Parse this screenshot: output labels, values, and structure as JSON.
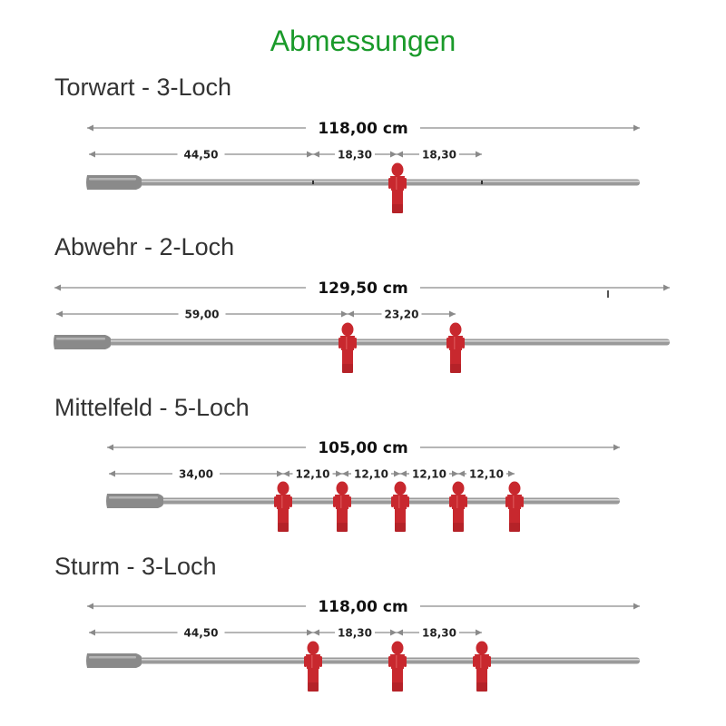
{
  "title": "Abmessungen",
  "colors": {
    "title": "#1a9a2a",
    "rod": "#9a9a9a",
    "handle": "#8a8a8a",
    "figure": "#c8282e",
    "dimension_line": "#8a8a8a"
  },
  "rods": [
    {
      "title": "Torwart - 3-Loch",
      "total": "118,00 cm",
      "segments": [
        "44,50",
        "18,30",
        "18,30"
      ],
      "figures": 1
    },
    {
      "title": "Abwehr - 2-Loch",
      "total": "129,50 cm",
      "segments": [
        "59,00",
        "23,20"
      ],
      "figures": 2
    },
    {
      "title": "Mittelfeld - 5-Loch",
      "total": "105,00 cm",
      "segments": [
        "34,00",
        "12,10",
        "12,10",
        "12,10",
        "12,10"
      ],
      "figures": 5
    },
    {
      "title": "Sturm - 3-Loch",
      "total": "118,00 cm",
      "segments": [
        "44,50",
        "18,30",
        "18,30"
      ],
      "figures": 3
    }
  ]
}
